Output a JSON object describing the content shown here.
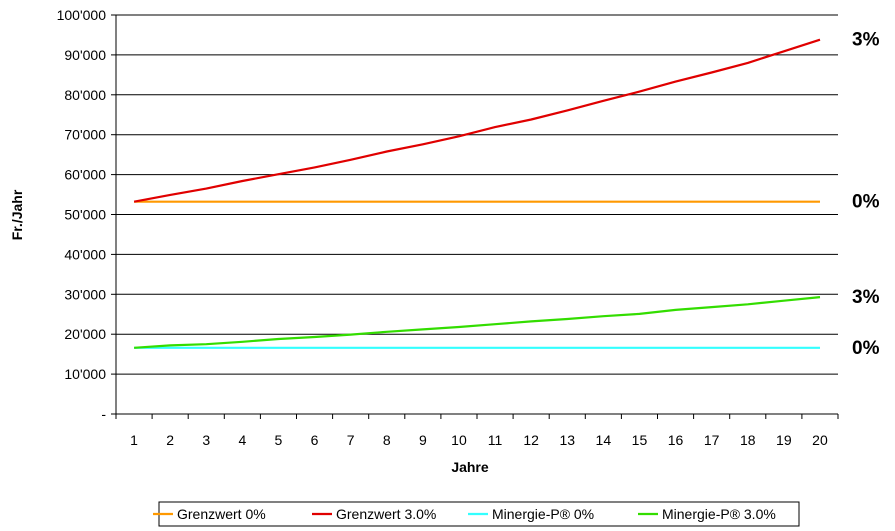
{
  "chart_data": {
    "type": "line",
    "xlabel": "Jahre",
    "ylabel": "Fr./Jahr",
    "x": [
      1,
      2,
      3,
      4,
      5,
      6,
      7,
      8,
      9,
      10,
      11,
      12,
      13,
      14,
      15,
      16,
      17,
      18,
      19,
      20
    ],
    "ylim": [
      0,
      100000
    ],
    "y_tick_labels": [
      "-",
      "10'000",
      "20'000",
      "30'000",
      "40'000",
      "50'000",
      "60'000",
      "70'000",
      "80'000",
      "90'000",
      "100'000"
    ],
    "grid": "horizontal",
    "legend": "bottom",
    "series": [
      {
        "name": "Grenzwert 0%",
        "color": "#ff9900",
        "values": [
          53200,
          53200,
          53200,
          53200,
          53200,
          53200,
          53200,
          53200,
          53200,
          53200,
          53200,
          53200,
          53200,
          53200,
          53200,
          53200,
          53200,
          53200,
          53200,
          53200
        ]
      },
      {
        "name": "Grenzwert 3.0%",
        "color": "#e00000",
        "values": [
          53200,
          54900,
          56500,
          58400,
          60100,
          61800,
          63700,
          65800,
          67600,
          69600,
          71900,
          73800,
          76100,
          78500,
          80800,
          83300,
          85600,
          88000,
          90900,
          93800
        ]
      },
      {
        "name": "Minergie-P® 0%",
        "color": "#33ffff",
        "values": [
          16600,
          16600,
          16600,
          16600,
          16600,
          16600,
          16600,
          16600,
          16600,
          16600,
          16600,
          16600,
          16600,
          16600,
          16600,
          16600,
          16600,
          16600,
          16600,
          16600
        ]
      },
      {
        "name": "Minergie-P® 3.0%",
        "color": "#33dd00",
        "values": [
          16600,
          17200,
          17500,
          18100,
          18800,
          19300,
          19900,
          20600,
          21200,
          21800,
          22500,
          23200,
          23800,
          24500,
          25100,
          26100,
          26800,
          27500,
          28400,
          29300
        ]
      }
    ],
    "annotations": [
      {
        "text": "3%",
        "y": 93800
      },
      {
        "text": "0%",
        "y": 53200
      },
      {
        "text": "3%",
        "y": 29300
      },
      {
        "text": "0%",
        "y": 16600
      }
    ]
  }
}
